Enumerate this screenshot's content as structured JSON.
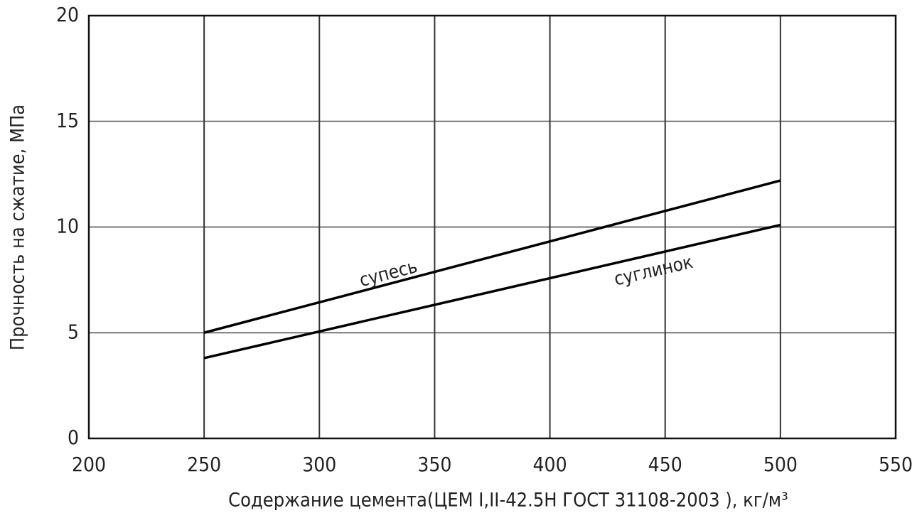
{
  "chart_data": {
    "type": "line",
    "x": [
      250,
      500
    ],
    "series": [
      {
        "name": "супесь",
        "color": "#000000",
        "values": [
          5,
          12.2
        ]
      },
      {
        "name": "суглинок",
        "color": "#000000",
        "values": [
          3.8,
          10.1
        ]
      }
    ],
    "x_label": "Содержание цемента(ЦЕМ I,II-42.5Н ГОСТ 31108-2003 ), кг/м³",
    "y_label": "Прочность на сжатие, МПа",
    "xlim": [
      200,
      550
    ],
    "xticks": [
      200,
      250,
      300,
      350,
      400,
      450,
      500,
      550
    ],
    "ylim": [
      0,
      20
    ],
    "yticks": [
      0,
      5,
      10,
      15,
      20
    ],
    "grid": true
  }
}
